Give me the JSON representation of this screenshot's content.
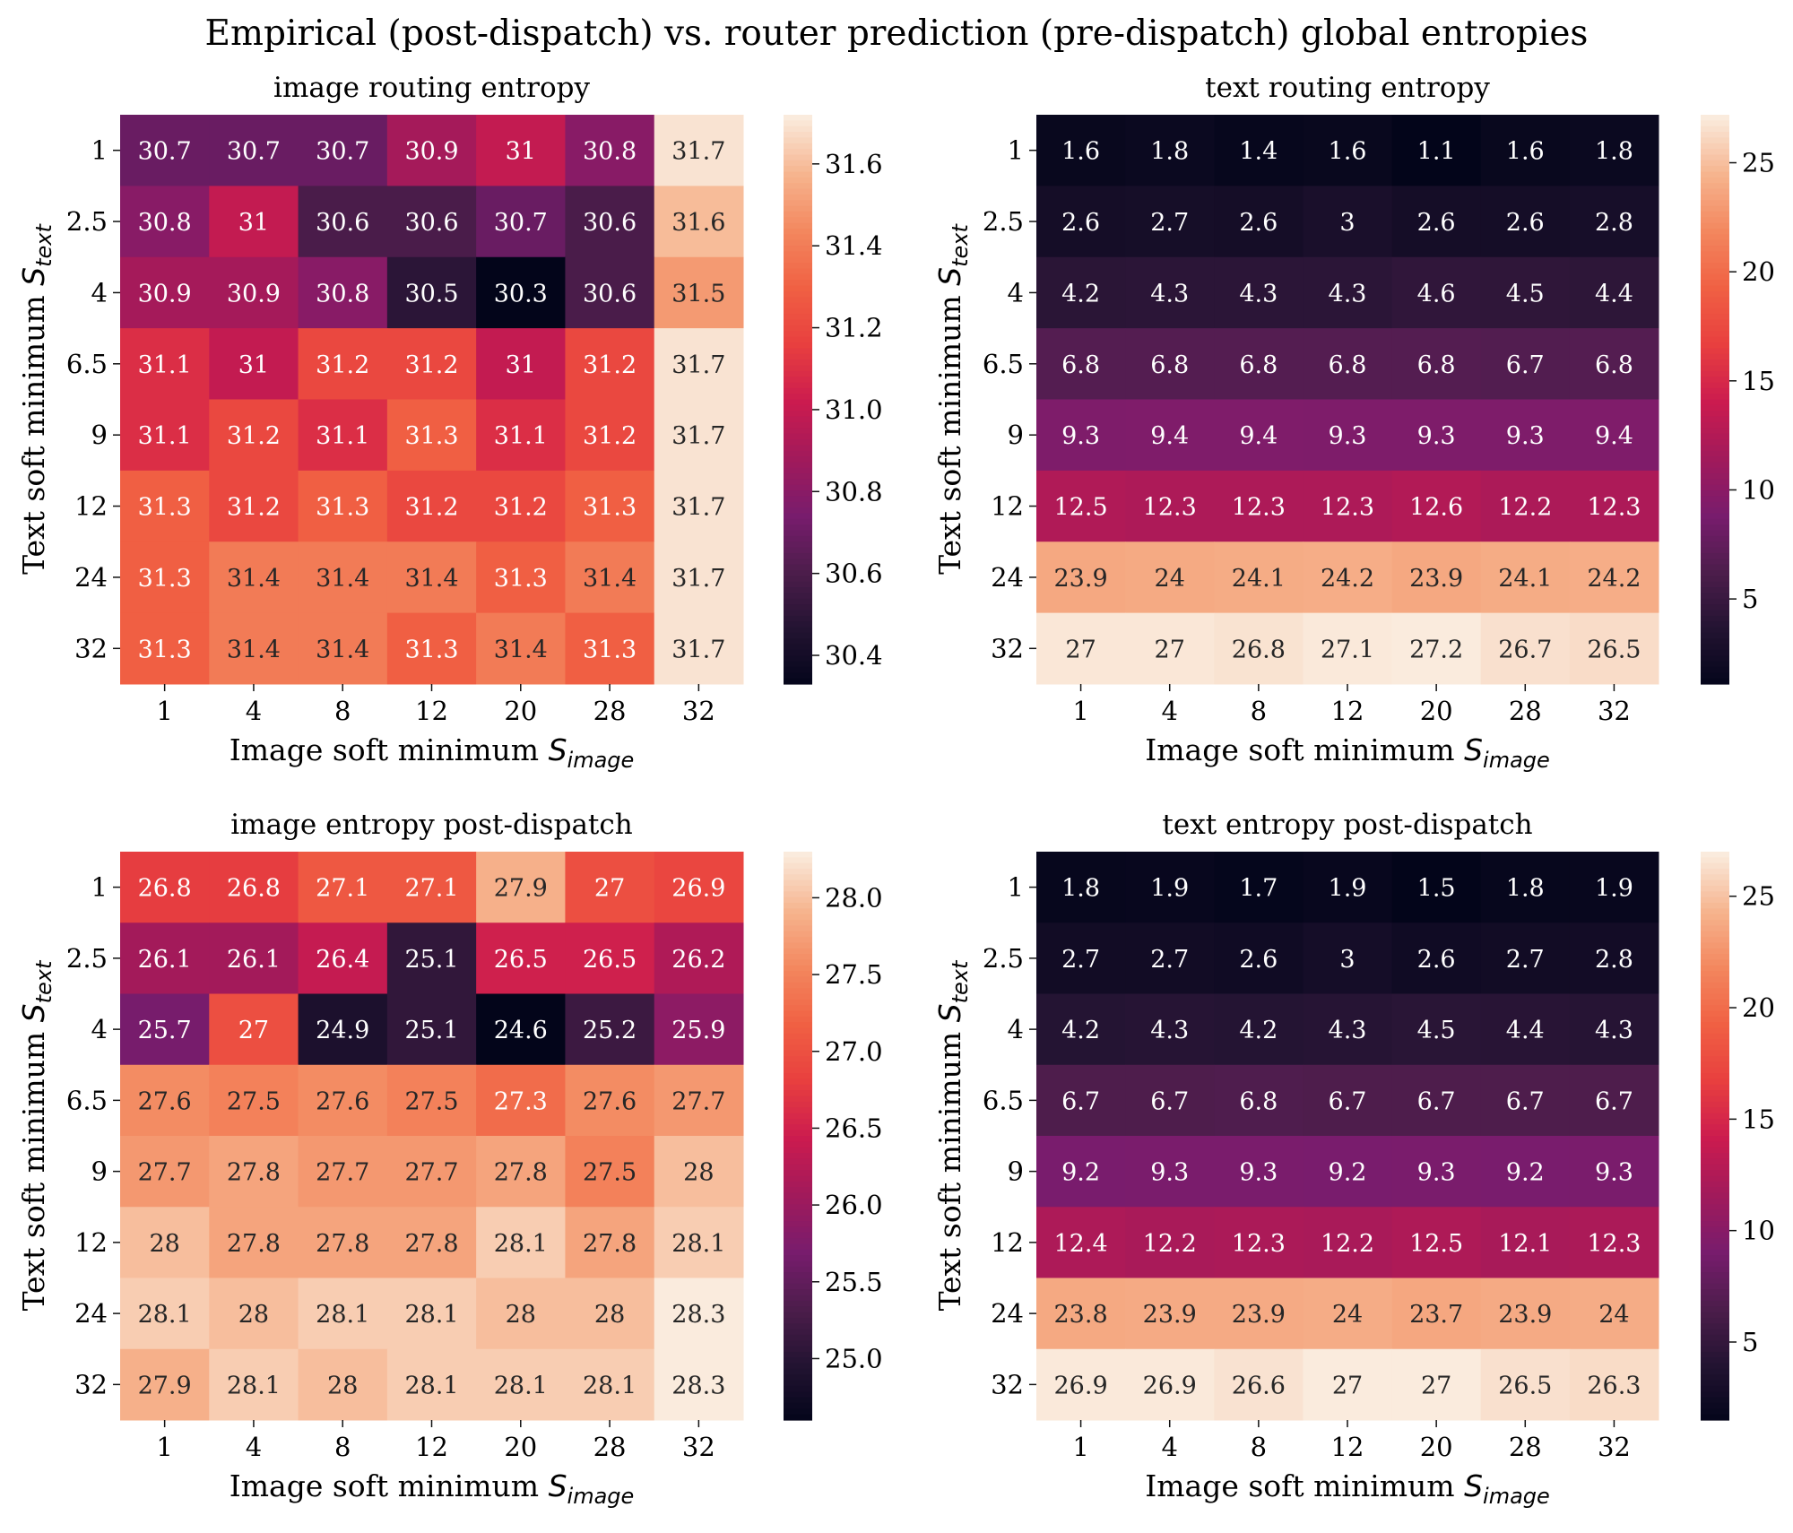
{
  "title": "Empirical (post-dispatch) vs. router prediction (pre-dispatch) global entropies",
  "chart_data": [
    {
      "type": "heatmap",
      "title": "image routing entropy",
      "xlabel": "Image soft minimum S_image",
      "ylabel": "Text soft minimum S_text",
      "xlabel_text": "Image soft minimum ",
      "xlabel_sym": "S",
      "xlabel_sub": "image",
      "ylabel_text": "Text soft minimum ",
      "ylabel_sym": "S",
      "ylabel_sub": "text",
      "x_categories": [
        "1",
        "4",
        "8",
        "12",
        "20",
        "28",
        "32"
      ],
      "y_categories": [
        "1",
        "2.5",
        "4",
        "6.5",
        "9",
        "12",
        "24",
        "32"
      ],
      "values": [
        [
          30.7,
          30.7,
          30.7,
          30.9,
          31.0,
          30.8,
          31.7
        ],
        [
          30.8,
          31.0,
          30.6,
          30.6,
          30.7,
          30.6,
          31.6
        ],
        [
          30.9,
          30.9,
          30.8,
          30.5,
          30.3,
          30.6,
          31.5
        ],
        [
          31.1,
          31.0,
          31.2,
          31.2,
          31.0,
          31.2,
          31.7
        ],
        [
          31.1,
          31.2,
          31.1,
          31.3,
          31.1,
          31.2,
          31.7
        ],
        [
          31.3,
          31.2,
          31.3,
          31.2,
          31.2,
          31.3,
          31.7
        ],
        [
          31.3,
          31.4,
          31.4,
          31.4,
          31.3,
          31.4,
          31.7
        ],
        [
          31.3,
          31.4,
          31.4,
          31.3,
          31.4,
          31.3,
          31.7
        ]
      ],
      "colorbar": {
        "colormap": "rocket",
        "range": [
          30.33,
          31.72
        ],
        "ticks": [
          "30.4",
          "30.6",
          "30.8",
          "31.0",
          "31.2",
          "31.4",
          "31.6"
        ]
      }
    },
    {
      "type": "heatmap",
      "title": "text routing entropy",
      "xlabel": "Image soft minimum S_image",
      "ylabel": "Text soft minimum S_text",
      "xlabel_text": "Image soft minimum ",
      "xlabel_sym": "S",
      "xlabel_sub": "image",
      "ylabel_text": "Text soft minimum ",
      "ylabel_sym": "S",
      "ylabel_sub": "text",
      "x_categories": [
        "1",
        "4",
        "8",
        "12",
        "20",
        "28",
        "32"
      ],
      "y_categories": [
        "1",
        "2.5",
        "4",
        "6.5",
        "9",
        "12",
        "24",
        "32"
      ],
      "values": [
        [
          1.6,
          1.8,
          1.4,
          1.6,
          1.1,
          1.6,
          1.8
        ],
        [
          2.6,
          2.7,
          2.6,
          3.0,
          2.6,
          2.6,
          2.8
        ],
        [
          4.2,
          4.3,
          4.3,
          4.3,
          4.6,
          4.5,
          4.4
        ],
        [
          6.8,
          6.8,
          6.8,
          6.8,
          6.8,
          6.7,
          6.8
        ],
        [
          9.3,
          9.4,
          9.4,
          9.3,
          9.3,
          9.3,
          9.4
        ],
        [
          12.5,
          12.3,
          12.3,
          12.3,
          12.6,
          12.2,
          12.3
        ],
        [
          23.9,
          24.0,
          24.1,
          24.2,
          23.9,
          24.1,
          24.2
        ],
        [
          27.0,
          27.0,
          26.8,
          27.1,
          27.2,
          26.7,
          26.5
        ]
      ],
      "colorbar": {
        "colormap": "rocket",
        "range": [
          1.1,
          27.2
        ],
        "ticks": [
          "5",
          "10",
          "15",
          "20",
          "25"
        ]
      }
    },
    {
      "type": "heatmap",
      "title": "image entropy post-dispatch",
      "xlabel": "Image soft minimum S_image",
      "ylabel": "Text soft minimum S_text",
      "xlabel_text": "Image soft minimum ",
      "xlabel_sym": "S",
      "xlabel_sub": "image",
      "ylabel_text": "Text soft minimum ",
      "ylabel_sym": "S",
      "ylabel_sub": "text",
      "x_categories": [
        "1",
        "4",
        "8",
        "12",
        "20",
        "28",
        "32"
      ],
      "y_categories": [
        "1",
        "2.5",
        "4",
        "6.5",
        "9",
        "12",
        "24",
        "32"
      ],
      "values": [
        [
          26.8,
          26.8,
          27.1,
          27.1,
          27.9,
          27.0,
          26.9
        ],
        [
          26.1,
          26.1,
          26.4,
          25.1,
          26.5,
          26.5,
          26.2
        ],
        [
          25.7,
          27.0,
          24.9,
          25.1,
          24.6,
          25.2,
          25.9
        ],
        [
          27.6,
          27.5,
          27.6,
          27.5,
          27.3,
          27.6,
          27.7
        ],
        [
          27.7,
          27.8,
          27.7,
          27.7,
          27.8,
          27.5,
          28.0
        ],
        [
          28.0,
          27.8,
          27.8,
          27.8,
          28.1,
          27.8,
          28.1
        ],
        [
          28.1,
          28.0,
          28.1,
          28.1,
          28.0,
          28.0,
          28.3
        ],
        [
          27.9,
          28.1,
          28.0,
          28.1,
          28.1,
          28.1,
          28.3
        ]
      ],
      "colorbar": {
        "colormap": "rocket",
        "range": [
          24.6,
          28.3
        ],
        "ticks": [
          "25.0",
          "25.5",
          "26.0",
          "26.5",
          "27.0",
          "27.5",
          "28.0"
        ]
      }
    },
    {
      "type": "heatmap",
      "title": "text entropy post-dispatch",
      "xlabel": "Image soft minimum S_image",
      "ylabel": "Text soft minimum S_text",
      "xlabel_text": "Image soft minimum ",
      "xlabel_sym": "S",
      "xlabel_sub": "image",
      "ylabel_text": "Text soft minimum ",
      "ylabel_sym": "S",
      "ylabel_sub": "text",
      "x_categories": [
        "1",
        "4",
        "8",
        "12",
        "20",
        "28",
        "32"
      ],
      "y_categories": [
        "1",
        "2.5",
        "4",
        "6.5",
        "9",
        "12",
        "24",
        "32"
      ],
      "values": [
        [
          1.8,
          1.9,
          1.7,
          1.9,
          1.5,
          1.8,
          1.9
        ],
        [
          2.7,
          2.7,
          2.6,
          3.0,
          2.6,
          2.7,
          2.8
        ],
        [
          4.2,
          4.3,
          4.2,
          4.3,
          4.5,
          4.4,
          4.3
        ],
        [
          6.7,
          6.7,
          6.8,
          6.7,
          6.7,
          6.7,
          6.7
        ],
        [
          9.2,
          9.3,
          9.3,
          9.2,
          9.3,
          9.2,
          9.3
        ],
        [
          12.4,
          12.2,
          12.3,
          12.2,
          12.5,
          12.1,
          12.3
        ],
        [
          23.8,
          23.9,
          23.9,
          24.0,
          23.7,
          23.9,
          24.0
        ],
        [
          26.9,
          26.9,
          26.6,
          27.0,
          27.0,
          26.5,
          26.3
        ]
      ],
      "colorbar": {
        "colormap": "rocket",
        "range": [
          1.5,
          27.0
        ],
        "ticks": [
          "5",
          "10",
          "15",
          "20",
          "25"
        ]
      }
    }
  ]
}
